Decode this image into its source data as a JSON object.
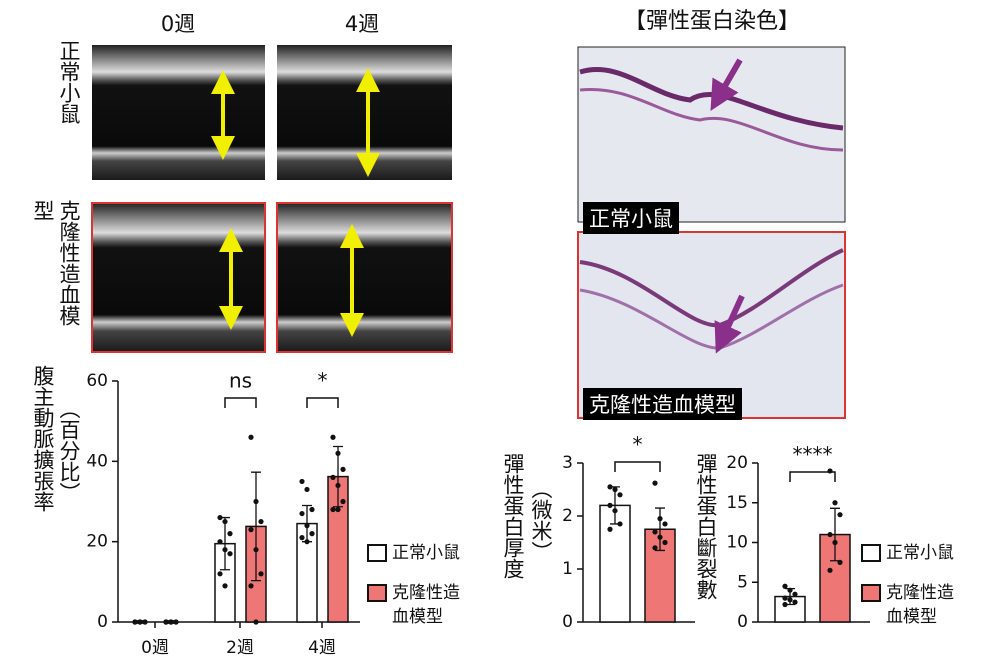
{
  "panels": {
    "columns": [
      "0週",
      "4週"
    ],
    "rows": [
      "正常小鼠",
      "克隆性造血模型"
    ],
    "stain_title": "【彈性蛋白染色】",
    "stain_labels": [
      "正常小鼠",
      "克隆性造血模型"
    ]
  },
  "chart_data": [
    {
      "type": "bar",
      "ylabel": "腹主動脈擴張率",
      "ylabel_unit": "（百分比）",
      "categories": [
        "0週",
        "2週",
        "4週"
      ],
      "annotations": [
        null,
        "ns",
        "*"
      ],
      "ylim": [
        0,
        60
      ],
      "yticks": [
        0,
        20,
        40,
        60
      ],
      "legend": true,
      "series": [
        {
          "name": "正常小鼠",
          "color": "#ffffff",
          "values": [
            0,
            19.5,
            24.5
          ],
          "errors": [
            0.3,
            6.5,
            4.5
          ],
          "points": [
            [
              0,
              0,
              0,
              0,
              0,
              0,
              0,
              0
            ],
            [
              26,
              25,
              22,
              20,
              18,
              17,
              12,
              9
            ],
            [
              35,
              33,
              28,
              27,
              24,
              22,
              21,
              20
            ]
          ]
        },
        {
          "name": "克隆性造血模型",
          "color": "#ee7674",
          "values": [
            0,
            23.8,
            36.2
          ],
          "errors": [
            0.3,
            13.5,
            7.5
          ],
          "points": [
            [
              0,
              0,
              0,
              0,
              0,
              0,
              0,
              0
            ],
            [
              46,
              30,
              25,
              23,
              18,
              12,
              9,
              0
            ],
            [
              46,
              42,
              38,
              36,
              34,
              30,
              28,
              28
            ]
          ]
        }
      ]
    },
    {
      "type": "bar",
      "ylabel": "彈性蛋白厚度",
      "ylabel_unit": "（微米）",
      "annotation": "*",
      "ylim": [
        0,
        3
      ],
      "yticks": [
        0,
        1,
        2,
        3
      ],
      "legend": false,
      "series": [
        {
          "color": "#ffffff",
          "values": [
            2.2
          ],
          "errors": [
            0.35
          ],
          "points": [
            [
              2.55,
              2.5,
              2.4,
              2.2,
              2.1,
              1.85,
              1.75
            ]
          ]
        },
        {
          "color": "#ee7674",
          "values": [
            1.75
          ],
          "errors": [
            0.4
          ],
          "points": [
            [
              2.62,
              1.95,
              1.85,
              1.7,
              1.6,
              1.5,
              1.4
            ]
          ]
        }
      ]
    },
    {
      "type": "bar",
      "ylabel": "彈性蛋白斷裂數",
      "annotation": "****",
      "ylim": [
        0,
        20
      ],
      "yticks": [
        0,
        5,
        10,
        15,
        20
      ],
      "legend": true,
      "series": [
        {
          "name": "正常小鼠",
          "color": "#ffffff",
          "values": [
            3.2
          ],
          "errors": [
            1.0
          ],
          "points": [
            [
              4.5,
              4,
              3.5,
              3,
              2.8,
              2.5,
              2.2
            ]
          ]
        },
        {
          "name": "克隆性造血模型",
          "color": "#ee7674",
          "values": [
            11
          ],
          "errors": [
            3.3
          ],
          "points": [
            [
              19,
              15,
              13.5,
              11,
              10,
              7.5,
              6.5
            ]
          ]
        }
      ]
    }
  ]
}
